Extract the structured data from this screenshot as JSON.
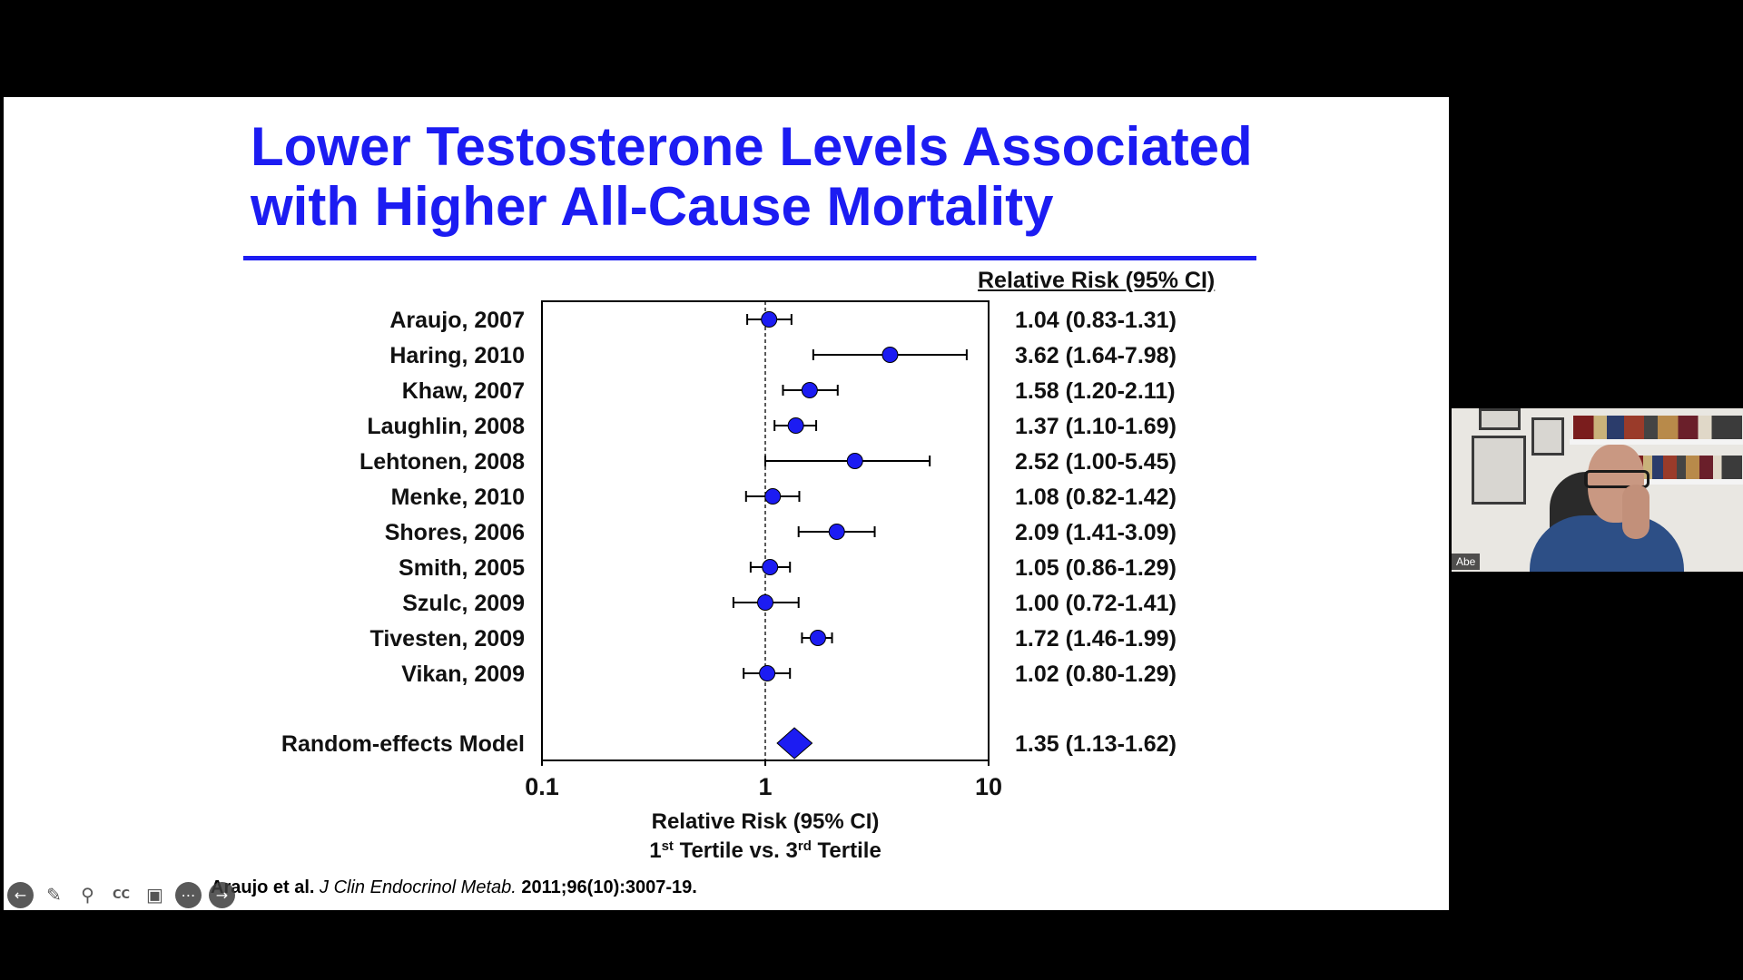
{
  "slide": {
    "title_line1": "Lower Testosterone Levels Associated",
    "title_line2": "with Higher All-Cause Mortality",
    "rr_header": "Relative Risk (95% CI)",
    "citation_authors": "Araujo et al. ",
    "citation_journal": "J Clin Endocrinol Metab.",
    "citation_rest": " 2011;96(10):3007-19."
  },
  "chart_data": {
    "type": "forest",
    "x_scale": "log",
    "xlim": [
      0.1,
      10
    ],
    "x_ticks": [
      "0.1",
      "1",
      "10"
    ],
    "xlabel_line1": "Relative Risk (95% CI)",
    "xlabel_line2_parts": [
      "1",
      "st",
      " Tertile vs. 3",
      "rd",
      " Tertile"
    ],
    "reference_line": 1,
    "colors": {
      "marker": "#1c1cf2",
      "line": "#000000"
    },
    "studies": [
      {
        "label": "Araujo, 2007",
        "rr": 1.04,
        "lo": 0.83,
        "hi": 1.31,
        "text": "1.04 (0.83-1.31)"
      },
      {
        "label": "Haring, 2010",
        "rr": 3.62,
        "lo": 1.64,
        "hi": 7.98,
        "text": "3.62 (1.64-7.98)"
      },
      {
        "label": "Khaw, 2007",
        "rr": 1.58,
        "lo": 1.2,
        "hi": 2.11,
        "text": "1.58 (1.20-2.11)"
      },
      {
        "label": "Laughlin, 2008",
        "rr": 1.37,
        "lo": 1.1,
        "hi": 1.69,
        "text": "1.37 (1.10-1.69)"
      },
      {
        "label": "Lehtonen, 2008",
        "rr": 2.52,
        "lo": 1.0,
        "hi": 5.45,
        "text": "2.52 (1.00-5.45)"
      },
      {
        "label": "Menke, 2010",
        "rr": 1.08,
        "lo": 0.82,
        "hi": 1.42,
        "text": "1.08 (0.82-1.42)"
      },
      {
        "label": "Shores, 2006",
        "rr": 2.09,
        "lo": 1.41,
        "hi": 3.09,
        "text": "2.09 (1.41-3.09)"
      },
      {
        "label": "Smith, 2005",
        "rr": 1.05,
        "lo": 0.86,
        "hi": 1.29,
        "text": "1.05 (0.86-1.29)"
      },
      {
        "label": "Szulc, 2009",
        "rr": 1.0,
        "lo": 0.72,
        "hi": 1.41,
        "text": "1.00 (0.72-1.41)"
      },
      {
        "label": "Tivesten, 2009",
        "rr": 1.72,
        "lo": 1.46,
        "hi": 1.99,
        "text": "1.72 (1.46-1.99)"
      },
      {
        "label": "Vikan, 2009",
        "rr": 1.02,
        "lo": 0.8,
        "hi": 1.29,
        "text": "1.02 (0.80-1.29)"
      }
    ],
    "summary": {
      "label": "Random-effects Model",
      "rr": 1.35,
      "lo": 1.13,
      "hi": 1.62,
      "text": "1.35 (1.13-1.62)"
    }
  },
  "toolbar": {
    "icons": [
      "back-arrow-icon",
      "pen-icon",
      "zoom-icon",
      "closed-caption-icon",
      "video-off-icon",
      "more-icon",
      "forward-icon"
    ]
  },
  "video": {
    "participant_name": "Abe"
  }
}
